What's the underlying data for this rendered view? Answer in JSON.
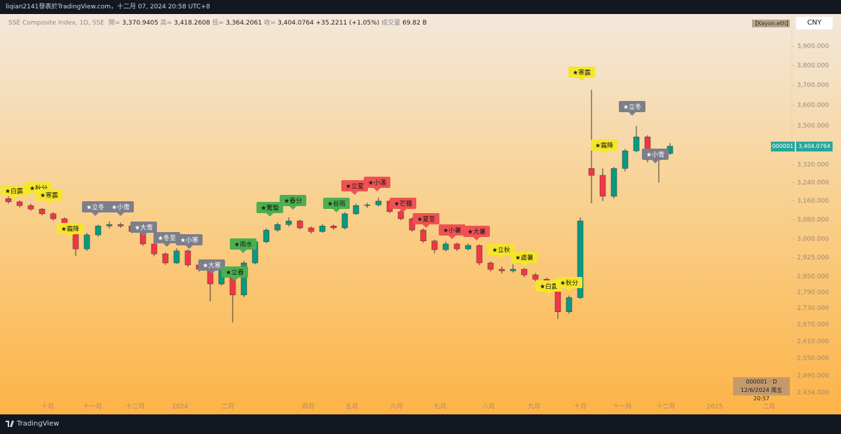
{
  "top_bar": "liqian2141發表於TradingView.com，十二月 07, 2024 20:58 UTC+8",
  "chart_data": {
    "type": "candlestick",
    "title": "SSE Composite Index, 1D, SSE",
    "legend": {
      "open_label": "開=",
      "open": "3,370.9405",
      "high_label": "高=",
      "high": "3,418.2608",
      "low_label": "低=",
      "low": "3,364.2061",
      "close_label": "收=",
      "close": "3,404.0764",
      "change": "+35.2211 (+1.05%)",
      "volume_label": "成交量",
      "volume": "69.82 B"
    },
    "open": [
      3170,
      3156,
      3140,
      3125,
      3105,
      3084,
      3031,
      2960,
      3017,
      3054,
      3060,
      3054,
      3031,
      2980,
      2940,
      2904,
      2952,
      2896,
      2879,
      2822,
      2876,
      2780,
      2904,
      2989,
      3037,
      3060,
      3075,
      3046,
      3031,
      3054,
      3046,
      3105,
      3140,
      3143,
      3159,
      3114,
      3084,
      3037,
      2992,
      2957,
      2980,
      2960,
      2974,
      2904,
      2879,
      2873,
      2879,
      2857,
      2840,
      2795,
      2717,
      2770,
      3303,
      3272,
      3180,
      3303,
      3383,
      3448,
      3342,
      3370.9405
    ],
    "high": [
      3185,
      3162,
      3148,
      3130,
      3112,
      3090,
      3036,
      3025,
      3060,
      3072,
      3068,
      3060,
      3038,
      2988,
      2946,
      2962,
      2958,
      2905,
      2885,
      2890,
      2880,
      2912,
      2996,
      3045,
      3068,
      3090,
      3080,
      3052,
      3062,
      3060,
      3112,
      3148,
      3152,
      3174,
      3164,
      3120,
      3090,
      3044,
      2998,
      2990,
      2986,
      2982,
      2978,
      2910,
      2890,
      2898,
      2884,
      2864,
      2846,
      2800,
      2778,
      3090,
      3676,
      3303,
      3310,
      3392,
      3500,
      3456,
      3375,
      3418.2608
    ],
    "low": [
      3148,
      3132,
      3118,
      3098,
      3076,
      3022,
      2932,
      2952,
      3010,
      3044,
      3046,
      3024,
      2972,
      2930,
      2896,
      2900,
      2888,
      2870,
      2756,
      2815,
      2678,
      2772,
      2898,
      2982,
      3030,
      3052,
      3040,
      3022,
      3026,
      3038,
      3040,
      3100,
      3130,
      3136,
      3108,
      3078,
      3030,
      2984,
      2942,
      2950,
      2952,
      2954,
      2895,
      2870,
      2862,
      2866,
      2848,
      2832,
      2788,
      2690,
      2710,
      2765,
      3150,
      3159,
      3170,
      3290,
      3376,
      3330,
      3240,
      3364.2061
    ],
    "close": [
      3156,
      3140,
      3125,
      3105,
      3084,
      3031,
      2960,
      3017,
      3054,
      3060,
      3054,
      3031,
      2980,
      2940,
      2904,
      2952,
      2896,
      2879,
      2822,
      2876,
      2780,
      2904,
      2989,
      3037,
      3060,
      3075,
      3046,
      3031,
      3054,
      3046,
      3105,
      3140,
      3143,
      3159,
      3114,
      3084,
      3037,
      2992,
      2957,
      2980,
      2960,
      2974,
      2904,
      2879,
      2873,
      2879,
      2857,
      2840,
      2795,
      2717,
      2770,
      3075,
      3272,
      3180,
      3303,
      3383,
      3448,
      3342,
      3368,
      3404.0764
    ],
    "up_color": "#089981",
    "down_color": "#f23645",
    "ylim": [
      2365,
      4076
    ],
    "log_scale": true,
    "grid": false,
    "yticks": [
      {
        "value": 3900,
        "label": "3,900.000"
      },
      {
        "value": 3800,
        "label": "3,800.000"
      },
      {
        "value": 3700,
        "label": "3,700.000"
      },
      {
        "value": 3600,
        "label": "3,600.000"
      },
      {
        "value": 3500,
        "label": "3,500.000"
      },
      {
        "value": 3320,
        "label": "3,320.000"
      },
      {
        "value": 3240,
        "label": "3,240.000"
      },
      {
        "value": 3160,
        "label": "3,160.000"
      },
      {
        "value": 3080,
        "label": "3,080.000"
      },
      {
        "value": 3000,
        "label": "3,000.000"
      },
      {
        "value": 2925,
        "label": "2,925.000"
      },
      {
        "value": 2850,
        "label": "2,850.000"
      },
      {
        "value": 2790,
        "label": "2,790.000"
      },
      {
        "value": 2730,
        "label": "2,730.000"
      },
      {
        "value": 2670,
        "label": "2,670.000"
      },
      {
        "value": 2610,
        "label": "2,610.000"
      },
      {
        "value": 2550,
        "label": "2,550.000"
      },
      {
        "value": 2490,
        "label": "2,490.000"
      },
      {
        "value": 2434,
        "label": "2,434.000"
      }
    ],
    "xtick_labels": [
      "十月",
      "十一月",
      "十二月",
      "2024",
      "二月",
      "四月",
      "五月",
      "六月",
      "七月",
      "八月",
      "九月",
      "十月",
      "十一月",
      "十二月",
      "2025",
      "二月"
    ],
    "annotations": [
      {
        "text": "★白露",
        "color": "#f5e62b"
      },
      {
        "text": "★秋分",
        "color": "#f5e62b"
      },
      {
        "text": "★寒露",
        "color": "#f5e62b"
      },
      {
        "text": "★霜降",
        "color": "#f5e62b"
      },
      {
        "text": "★立冬",
        "color": "#7c7f8a"
      },
      {
        "text": "★小雪",
        "color": "#7c7f8a"
      },
      {
        "text": "★大雪",
        "color": "#7c7f8a"
      },
      {
        "text": "★冬至",
        "color": "#7c7f8a"
      },
      {
        "text": "★小寒",
        "color": "#7c7f8a"
      },
      {
        "text": "★大寒",
        "color": "#7c7f8a"
      },
      {
        "text": "★立春",
        "color": "#4caf50"
      },
      {
        "text": "★雨水",
        "color": "#4caf50"
      },
      {
        "text": "★驚蟄",
        "color": "#4caf50"
      },
      {
        "text": "★春分",
        "color": "#4caf50"
      },
      {
        "text": "★谷雨",
        "color": "#4caf50"
      },
      {
        "text": "★立夏",
        "color": "#f05252"
      },
      {
        "text": "★小滿",
        "color": "#f05252"
      },
      {
        "text": "★芒種",
        "color": "#f05252"
      },
      {
        "text": "★夏至",
        "color": "#f05252"
      },
      {
        "text": "★小暑",
        "color": "#f05252"
      },
      {
        "text": "★大暑",
        "color": "#f05252"
      },
      {
        "text": "★立秋",
        "color": "#f5e62b"
      },
      {
        "text": "★處暑",
        "color": "#f5e62b"
      },
      {
        "text": "★白露",
        "color": "#f5e62b"
      },
      {
        "text": "★秋分",
        "color": "#f5e62b"
      },
      {
        "text": "★寒露",
        "color": "#f5e62b"
      },
      {
        "text": "★霜降",
        "color": "#f5e62b"
      },
      {
        "text": "★立冬",
        "color": "#7c7f8a"
      },
      {
        "text": "★小雪",
        "color": "#7c7f8a"
      }
    ],
    "price_label": {
      "symbol": "000001",
      "value": "3,404.0764"
    },
    "currency": "CNY",
    "author_tag": "【Kayon.eth】",
    "info_box": [
      "000001 · D",
      "12/6/2024 周五 20:57"
    ]
  },
  "footer": "TradingView"
}
